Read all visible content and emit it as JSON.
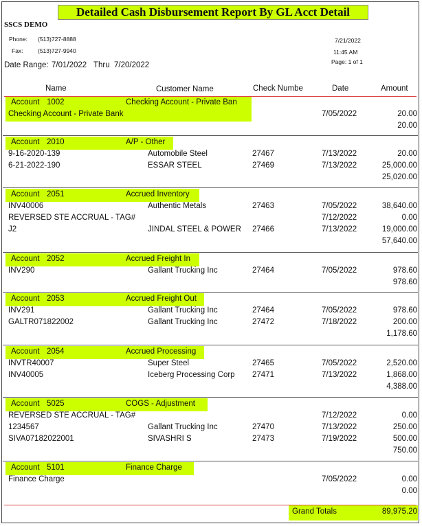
{
  "report": {
    "title": "Detailed Cash Disbursement Report By GL Acct Detail",
    "company": "SSCS DEMO",
    "phone_label": "Phone:",
    "phone": "(513)727-8888",
    "fax_label": "Fax:",
    "fax": "(513)727-9940",
    "date_range_label": "Date Range:",
    "date_from": "7/01/2022",
    "thru_label": "Thru",
    "date_to": "7/20/2022",
    "print_date": "7/21/2022",
    "print_time": "11:45 AM",
    "page": "Page: 1 of 1"
  },
  "columns": {
    "name": "Name",
    "customer": "Customer Name",
    "check": "Check Numbe",
    "date": "Date",
    "amount": "Amount"
  },
  "accounts": [
    {
      "label": "Account",
      "number": "1002",
      "description": "Checking Account - Private Ban",
      "rows": [
        {
          "name": "Checking Account - Private Bank",
          "customer": "",
          "check": "",
          "date": "7/05/2022",
          "amount": "20.00"
        }
      ],
      "total": "20.00"
    },
    {
      "label": "Account",
      "number": "2010",
      "description": "A/P - Other",
      "rows": [
        {
          "name": "9-16-2020-139",
          "customer": "Automobile Steel",
          "check": "27467",
          "date": "7/13/2022",
          "amount": "20.00"
        },
        {
          "name": "6-21-2022-190",
          "customer": "ESSAR STEEL",
          "check": "27469",
          "date": "7/13/2022",
          "amount": "25,000.00"
        }
      ],
      "total": "25,020.00"
    },
    {
      "label": "Account",
      "number": "2051",
      "description": "Accrued Inventory",
      "rows": [
        {
          "name": "INV40006",
          "customer": "Authentic Metals",
          "check": "27463",
          "date": "7/05/2022",
          "amount": "38,640.00"
        },
        {
          "name": "REVERSED STE ACCRUAL - TAG#",
          "customer": "",
          "check": "",
          "date": "7/12/2022",
          "amount": "0.00"
        },
        {
          "name": "J2",
          "customer": "JINDAL STEEL & POWER",
          "check": "27466",
          "date": "7/13/2022",
          "amount": "19,000.00"
        }
      ],
      "total": "57,640.00"
    },
    {
      "label": "Account",
      "number": "2052",
      "description": "Accrued Freight In",
      "rows": [
        {
          "name": "INV290",
          "customer": "Gallant Trucking Inc",
          "check": "27464",
          "date": "7/05/2022",
          "amount": "978.60"
        }
      ],
      "total": "978.60"
    },
    {
      "label": "Account",
      "number": "2053",
      "description": "Accrued Freight Out",
      "rows": [
        {
          "name": "INV291",
          "customer": "Gallant Trucking Inc",
          "check": "27464",
          "date": "7/05/2022",
          "amount": "978.60"
        },
        {
          "name": "GALTR071822002",
          "customer": "Gallant Trucking Inc",
          "check": "27472",
          "date": "7/18/2022",
          "amount": "200.00"
        }
      ],
      "total": "1,178.60"
    },
    {
      "label": "Account",
      "number": "2054",
      "description": "Accrued Processing",
      "rows": [
        {
          "name": "INVTR40007",
          "customer": "Super Steel",
          "check": "27465",
          "date": "7/05/2022",
          "amount": "2,520.00"
        },
        {
          "name": "INV40005",
          "customer": "Iceberg Processing Corp",
          "check": "27471",
          "date": "7/13/2022",
          "amount": "1,868.00"
        }
      ],
      "total": "4,388.00"
    },
    {
      "label": "Account",
      "number": "5025",
      "description": "COGS - Adjustment",
      "rows": [
        {
          "name": "REVERSED STE ACCRUAL - TAG#",
          "customer": "",
          "check": "",
          "date": "7/12/2022",
          "amount": "0.00"
        },
        {
          "name": "1234567",
          "customer": "Gallant Trucking Inc",
          "check": "27470",
          "date": "7/13/2022",
          "amount": "250.00"
        },
        {
          "name": "SIVA07182022001",
          "customer": "SIVASHRI S",
          "check": "27473",
          "date": "7/19/2022",
          "amount": "500.00"
        }
      ],
      "total": "750.00"
    },
    {
      "label": "Account",
      "number": "5101",
      "description": "Finance Charge",
      "rows": [
        {
          "name": "Finance Charge",
          "customer": "",
          "check": "",
          "date": "7/05/2022",
          "amount": "0.00"
        }
      ],
      "total": "0.00"
    }
  ],
  "grand_totals": {
    "label": "Grand Totals",
    "amount": "89,975.20"
  },
  "colors": {
    "highlight": "#ccff00",
    "rule": "#dd4444"
  }
}
